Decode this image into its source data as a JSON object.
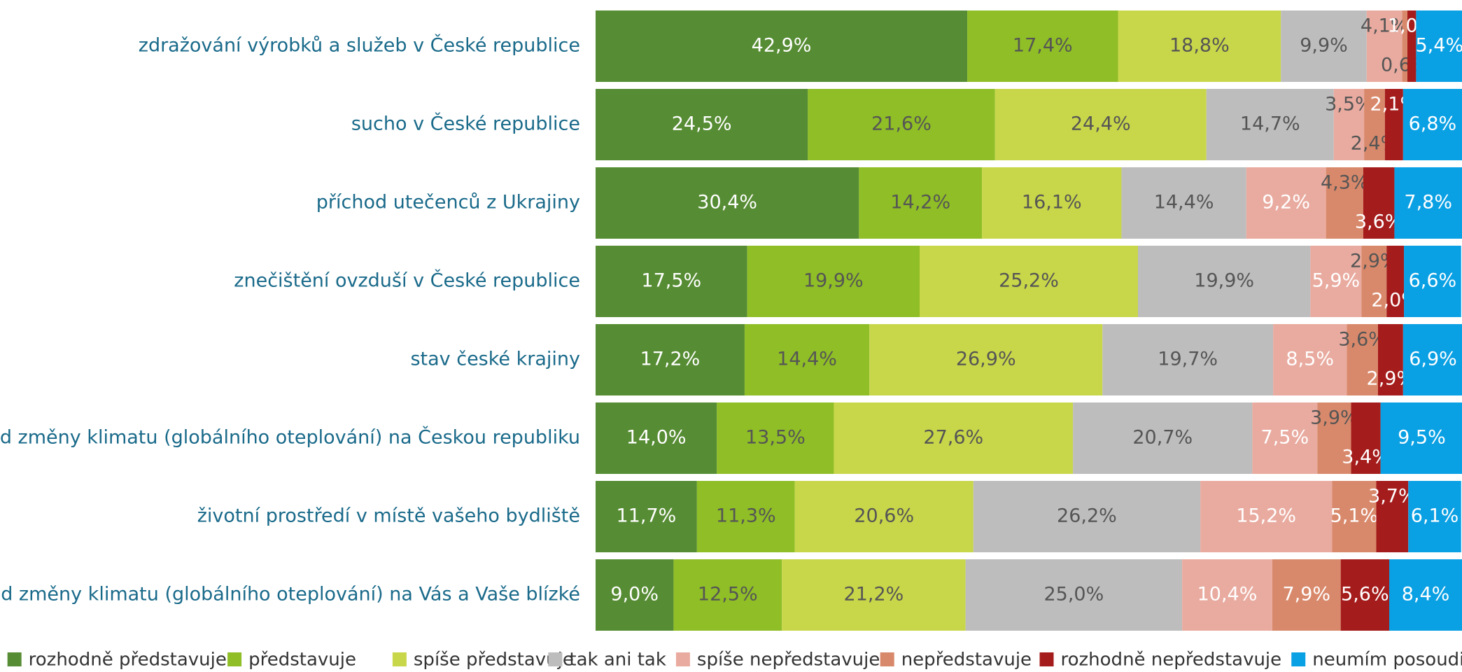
{
  "chart_data": {
    "type": "stacked-barh",
    "categories": [
      "zdražování výrobků a služeb v České republice",
      "sucho v České republice",
      "příchod utečenců z Ukrajiny",
      "znečištění ovzduší v České republice",
      "stav české krajiny",
      "dopad změny klimatu (globálního oteplování) na Českou republiku",
      "životní prostředí v místě vašeho bydliště",
      "dopad změny klimatu (globálního oteplování) na Vás a Vaše blízké"
    ],
    "xlim": [
      0,
      100
    ],
    "series": [
      {
        "name": "rozhodně představuje",
        "color": "#568c33",
        "values": [
          42.9,
          24.5,
          30.4,
          17.5,
          17.2,
          14.0,
          11.7,
          9.0
        ],
        "value_labels": [
          "42,9%",
          "24,5%",
          "30,4%",
          "17,5%",
          "17,2%",
          "14,0%",
          "11,7%",
          "9,0%"
        ]
      },
      {
        "name": "představuje",
        "color": "#8fbe26",
        "values": [
          17.4,
          21.6,
          14.2,
          19.9,
          14.4,
          13.5,
          11.3,
          12.5
        ],
        "value_labels": [
          "17,4%",
          "21,6%",
          "14,2%",
          "19,9%",
          "14,4%",
          "13,5%",
          "11,3%",
          "12,5%"
        ]
      },
      {
        "name": "spíše představuje",
        "color": "#c8d64a",
        "values": [
          18.8,
          24.4,
          16.1,
          25.2,
          26.9,
          27.6,
          20.6,
          21.2
        ],
        "value_labels": [
          "18,8%",
          "24,4%",
          "16,1%",
          "25,2%",
          "26,9%",
          "27,6%",
          "20,6%",
          "21,2%"
        ]
      },
      {
        "name": "tak ani tak",
        "color": "#bdbdbd",
        "values": [
          9.9,
          14.7,
          14.4,
          19.9,
          19.7,
          20.7,
          26.2,
          25.0
        ],
        "value_labels": [
          "9,9%",
          "14,7%",
          "14,4%",
          "19,9%",
          "19,7%",
          "20,7%",
          "26,2%",
          "25,0%"
        ]
      },
      {
        "name": "spíše nepředstavuje",
        "color": "#e9aba0",
        "values": [
          4.1,
          3.5,
          9.2,
          5.9,
          8.5,
          7.5,
          15.2,
          10.4
        ],
        "value_labels": [
          "4,1%",
          "3,5%",
          "9,2%",
          "5,9%",
          "8,5%",
          "7,5%",
          "15,2%",
          "10,4%"
        ]
      },
      {
        "name": "nepředstavuje",
        "color": "#d9896b",
        "values": [
          0.6,
          2.4,
          4.3,
          2.9,
          3.6,
          3.9,
          5.1,
          7.9
        ],
        "value_labels": [
          "0,6%",
          "2,4%",
          "4,3%",
          "2,9%",
          "3,6%",
          "3,9%",
          "5,1%",
          "7,9%"
        ]
      },
      {
        "name": "rozhodně nepředstavuje",
        "color": "#a51c1c",
        "values": [
          1.0,
          2.1,
          3.6,
          2.0,
          2.9,
          3.4,
          3.7,
          5.6
        ],
        "value_labels": [
          "1,0%",
          "2,1%",
          "3,6%",
          "2,0%",
          "2,9%",
          "3,4%",
          "3,7%",
          "5,6%"
        ]
      },
      {
        "name": "neumím posoudit",
        "color": "#0aa0e4",
        "values": [
          5.4,
          6.8,
          7.8,
          6.6,
          6.9,
          9.5,
          6.1,
          8.4
        ],
        "value_labels": [
          "5,4%",
          "6,8%",
          "7,8%",
          "6,6%",
          "6,9%",
          "9,5%",
          "6,1%",
          "8,4%"
        ]
      }
    ]
  }
}
